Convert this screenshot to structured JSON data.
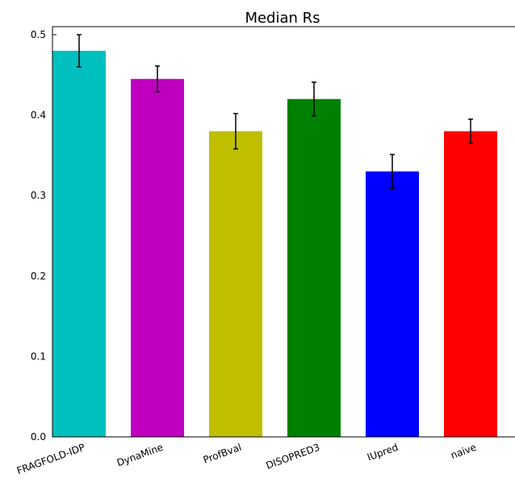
{
  "chart_data": {
    "type": "bar",
    "title": "Median Rs",
    "categories": [
      "FRAGFOLD-IDP",
      "DynaMine",
      "ProfBval",
      "DISOPRED3",
      "IUpred",
      "naive"
    ],
    "values": [
      0.48,
      0.445,
      0.38,
      0.42,
      0.33,
      0.38
    ],
    "errors": [
      0.02,
      0.016,
      0.022,
      0.021,
      0.021,
      0.015
    ],
    "colors": [
      "#00bfbf",
      "#bf00bf",
      "#bfbf00",
      "#008000",
      "#0000ff",
      "#ff0000"
    ],
    "ylim": [
      0,
      0.51
    ],
    "yticks": [
      {
        "value": 0,
        "label": "0.0"
      },
      0.1,
      0.2,
      0.3,
      0.4,
      0.5
    ]
  }
}
